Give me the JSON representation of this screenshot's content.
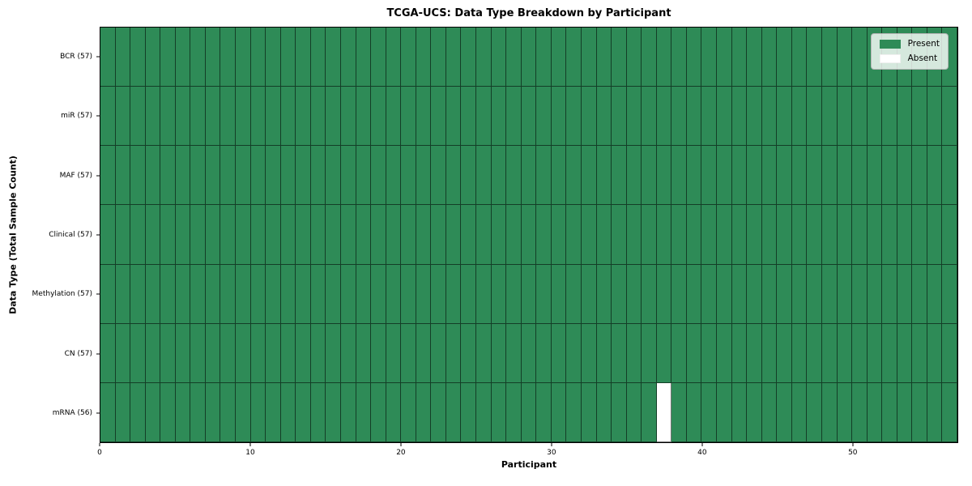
{
  "chart_data": {
    "type": "heatmap",
    "title": "TCGA-UCS: Data Type Breakdown by Participant",
    "xlabel": "Participant",
    "ylabel": "Data Type (Total Sample Count)",
    "n_participants": 57,
    "xlim": [
      0,
      57
    ],
    "x_ticks": [
      0,
      10,
      20,
      30,
      40,
      50
    ],
    "rows": [
      {
        "label": "BCR (57)",
        "data_type": "BCR",
        "present_count": 57,
        "absent_participants": []
      },
      {
        "label": "miR (57)",
        "data_type": "miR",
        "present_count": 57,
        "absent_participants": []
      },
      {
        "label": "MAF (57)",
        "data_type": "MAF",
        "present_count": 57,
        "absent_participants": []
      },
      {
        "label": "Clinical (57)",
        "data_type": "Clinical",
        "present_count": 57,
        "absent_participants": []
      },
      {
        "label": "Methylation (57)",
        "data_type": "Methylation",
        "present_count": 57,
        "absent_participants": []
      },
      {
        "label": "CN (57)",
        "data_type": "CN",
        "present_count": 57,
        "absent_participants": []
      },
      {
        "label": "mRNA (56)",
        "data_type": "mRNA",
        "present_count": 56,
        "absent_participants": [
          37
        ]
      }
    ],
    "legend": [
      {
        "label": "Present",
        "color": "#2e8b57"
      },
      {
        "label": "Absent",
        "color": "#ffffff"
      }
    ],
    "colors": {
      "present": "#2e8b57",
      "absent": "#ffffff",
      "cell_edge": "rgba(0,0,0,0.55)",
      "spine": "#000000",
      "background": "#ffffff"
    },
    "legend_position": "upper right",
    "grid": "cell-edges"
  }
}
